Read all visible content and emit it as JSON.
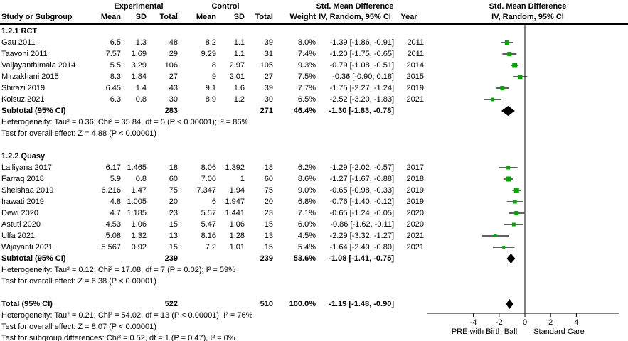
{
  "report": {
    "columns": {
      "experimental": "Experimental",
      "control": "Control",
      "smd": "Std. Mean Difference",
      "sub": [
        "Study or Subgroup",
        "Mean",
        "SD",
        "Total",
        "Mean",
        "SD",
        "Total",
        "Weight",
        "IV, Random, 95% CI",
        "Year"
      ]
    },
    "plot": {
      "title_line1": "Std. Mean Difference",
      "title_line2": "IV, Random, 95% CI",
      "favours_left": "PRE with Birth Ball",
      "favours_right": "Standard Care"
    },
    "colors": {
      "marker_green": "#00ab00",
      "diamond_black": "#000000",
      "line_black": "#000000",
      "background": "#ffffff"
    }
  },
  "chart_data": {
    "type": "forest",
    "effect_measure": "Std. Mean Difference",
    "model": "IV, Random, 95% CI",
    "ticks": [
      -4,
      -2,
      0,
      2,
      4
    ],
    "xlim": [
      -7.6,
      7.3
    ],
    "sections": [
      {
        "label": "1.2.1 RCT",
        "studies": [
          {
            "name": "Gau 2011",
            "exp_mean": 6.5,
            "exp_sd": 1.3,
            "exp_total": 48,
            "ctl_mean": 8.2,
            "ctl_sd": 1.1,
            "ctl_total": 39,
            "weight": 8.0,
            "smd": -1.39,
            "ci_low": -1.86,
            "ci_high": -0.91,
            "year": 2011
          },
          {
            "name": "Taavoni 2011",
            "exp_mean": 7.57,
            "exp_sd": 1.69,
            "exp_total": 29,
            "ctl_mean": 9.29,
            "ctl_sd": 1.1,
            "ctl_total": 31,
            "weight": 7.4,
            "smd": -1.2,
            "ci_low": -1.75,
            "ci_high": -0.65,
            "year": 2011
          },
          {
            "name": "Vaijayanthimala 2014",
            "exp_mean": 5.5,
            "exp_sd": 3.29,
            "exp_total": 106,
            "ctl_mean": 8,
            "ctl_sd": 2.97,
            "ctl_total": 105,
            "weight": 9.3,
            "smd": -0.79,
            "ci_low": -1.08,
            "ci_high": -0.51,
            "year": 2014
          },
          {
            "name": "Mirzakhani 2015",
            "exp_mean": 8.3,
            "exp_sd": 1.84,
            "exp_total": 27,
            "ctl_mean": 9,
            "ctl_sd": 2.01,
            "ctl_total": 27,
            "weight": 7.5,
            "smd": -0.36,
            "ci_low": -0.9,
            "ci_high": 0.18,
            "year": 2015
          },
          {
            "name": "Shirazi 2019",
            "exp_mean": 6.45,
            "exp_sd": 1.4,
            "exp_total": 43,
            "ctl_mean": 9.1,
            "ctl_sd": 1.6,
            "ctl_total": 39,
            "weight": 7.7,
            "smd": -1.75,
            "ci_low": -2.27,
            "ci_high": -1.24,
            "year": 2019
          },
          {
            "name": "Kolsuz 2021",
            "exp_mean": 6.3,
            "exp_sd": 0.8,
            "exp_total": 30,
            "ctl_mean": 8.9,
            "ctl_sd": 1.2,
            "ctl_total": 30,
            "weight": 6.5,
            "smd": -2.52,
            "ci_low": -3.2,
            "ci_high": -1.83,
            "year": 2021
          }
        ],
        "subtotal": {
          "label": "Subtotal (95% CI)",
          "exp_total": 283,
          "ctl_total": 271,
          "weight": 46.4,
          "smd": -1.3,
          "ci_low": -1.83,
          "ci_high": -0.78
        },
        "heterogeneity": "Heterogeneity: Tau² = 0.36; Chi² = 35.84, df = 5 (P < 0.00001); I² = 86%",
        "overall_effect": "Test for overall effect: Z = 4.88 (P < 0.00001)"
      },
      {
        "label": "1.2.2 Quasy",
        "studies": [
          {
            "name": "Lailiyana 2017",
            "exp_mean": 6.17,
            "exp_sd": 1.465,
            "exp_total": 18,
            "ctl_mean": 8.06,
            "ctl_sd": 1.392,
            "ctl_total": 18,
            "weight": 6.2,
            "smd": -1.29,
            "ci_low": -2.02,
            "ci_high": -0.57,
            "year": 2017
          },
          {
            "name": "Farraq 2018",
            "exp_mean": 5.9,
            "exp_sd": 0.8,
            "exp_total": 60,
            "ctl_mean": 7.06,
            "ctl_sd": 1,
            "ctl_total": 60,
            "weight": 8.6,
            "smd": -1.27,
            "ci_low": -1.67,
            "ci_high": -0.88,
            "year": 2018
          },
          {
            "name": "Sheishaa 2019",
            "exp_mean": 6.216,
            "exp_sd": 1.47,
            "exp_total": 75,
            "ctl_mean": 7.347,
            "ctl_sd": 1.94,
            "ctl_total": 75,
            "weight": 9.0,
            "smd": -0.65,
            "ci_low": -0.98,
            "ci_high": -0.33,
            "year": 2019
          },
          {
            "name": "Irawati 2019",
            "exp_mean": 4.8,
            "exp_sd": 1.005,
            "exp_total": 20,
            "ctl_mean": 6,
            "ctl_sd": 1.947,
            "ctl_total": 20,
            "weight": 6.8,
            "smd": -0.76,
            "ci_low": -1.4,
            "ci_high": -0.12,
            "year": 2019
          },
          {
            "name": "Dewi 2020",
            "exp_mean": 4.7,
            "exp_sd": 1.185,
            "exp_total": 23,
            "ctl_mean": 5.57,
            "ctl_sd": 1.441,
            "ctl_total": 23,
            "weight": 7.1,
            "smd": -0.65,
            "ci_low": -1.24,
            "ci_high": -0.05,
            "year": 2020
          },
          {
            "name": "Astuti 2020",
            "exp_mean": 4.53,
            "exp_sd": 1.06,
            "exp_total": 15,
            "ctl_mean": 5.47,
            "ctl_sd": 1.06,
            "ctl_total": 15,
            "weight": 6.0,
            "smd": -0.86,
            "ci_low": -1.62,
            "ci_high": -0.11,
            "year": 2020
          },
          {
            "name": "Ulfa 2021",
            "exp_mean": 5.08,
            "exp_sd": 1.32,
            "exp_total": 13,
            "ctl_mean": 8.16,
            "ctl_sd": 1.28,
            "ctl_total": 13,
            "weight": 4.5,
            "smd": -2.29,
            "ci_low": -3.32,
            "ci_high": -1.27,
            "year": 2021
          },
          {
            "name": "Wijayanti 2021",
            "exp_mean": 5.567,
            "exp_sd": 0.92,
            "exp_total": 15,
            "ctl_mean": 7.2,
            "ctl_sd": 1.01,
            "ctl_total": 15,
            "weight": 5.4,
            "smd": -1.64,
            "ci_low": -2.49,
            "ci_high": -0.8,
            "year": 2021
          }
        ],
        "subtotal": {
          "label": "Subtotal (95% CI)",
          "exp_total": 239,
          "ctl_total": 239,
          "weight": 53.6,
          "smd": -1.08,
          "ci_low": -1.41,
          "ci_high": -0.75
        },
        "heterogeneity": "Heterogeneity: Tau² = 0.12; Chi² = 17.08, df = 7 (P = 0.02); I² = 59%",
        "overall_effect": "Test for overall effect: Z = 6.38 (P < 0.00001)"
      }
    ],
    "total": {
      "label": "Total (95% CI)",
      "exp_total": 522,
      "ctl_total": 510,
      "weight": 100.0,
      "smd": -1.19,
      "ci_low": -1.48,
      "ci_high": -0.9,
      "heterogeneity": "Heterogeneity: Tau² = 0.21; Chi² = 54.02, df = 13 (P < 0.00001); I² = 76%",
      "overall_effect": "Test for overall effect: Z = 8.07 (P < 0.00001)",
      "subgroup_differences": "Test for subgroup differences: Chi² = 0.52, df = 1 (P = 0.47), I² = 0%"
    }
  }
}
